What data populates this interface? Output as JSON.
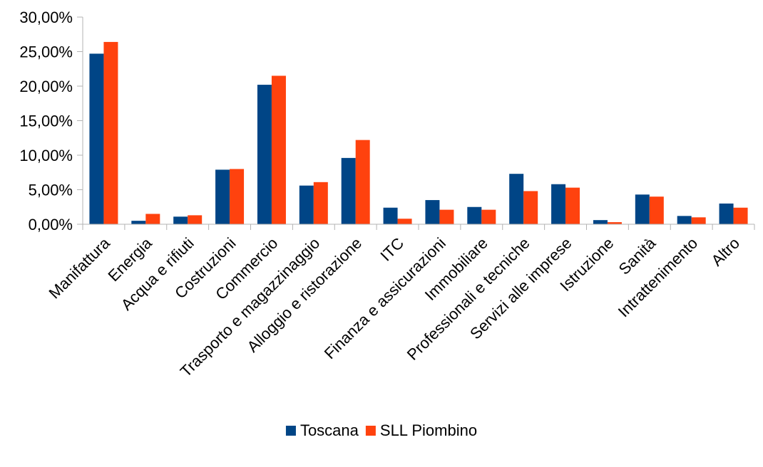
{
  "chart_data": {
    "type": "bar",
    "categories": [
      "Manifattura",
      "Energia",
      "Acqua e rifiuti",
      "Costruzioni",
      "Commercio",
      "Trasporto e magazzinaggio",
      "Alloggio e ristorazione",
      "ITC",
      "Finanza e assicurazioni",
      "Immobiliare",
      "Professionali e tecniche",
      "Servizi alle imprese",
      "Istruzione",
      "Sanità",
      "Intrattenimento",
      "Altro"
    ],
    "series": [
      {
        "name": "Toscana",
        "color": "#004586",
        "values": [
          24.7,
          0.5,
          1.1,
          7.9,
          20.2,
          5.6,
          9.6,
          2.4,
          3.5,
          2.5,
          7.3,
          5.8,
          0.6,
          4.3,
          1.2,
          3.0
        ]
      },
      {
        "name": "SLL Piombino",
        "color": "#ff420e",
        "values": [
          26.4,
          1.5,
          1.3,
          8.0,
          21.5,
          6.1,
          12.2,
          0.8,
          2.1,
          2.1,
          4.8,
          5.3,
          0.3,
          4.0,
          1.0,
          2.4
        ]
      }
    ],
    "yticks": [
      "0,00%",
      "5,00%",
      "10,00%",
      "15,00%",
      "20,00%",
      "25,00%",
      "30,00%"
    ],
    "ylim": [
      0,
      30
    ],
    "grid": false,
    "legend_position": "bottom",
    "title": "",
    "xlabel": "",
    "ylabel": ""
  }
}
